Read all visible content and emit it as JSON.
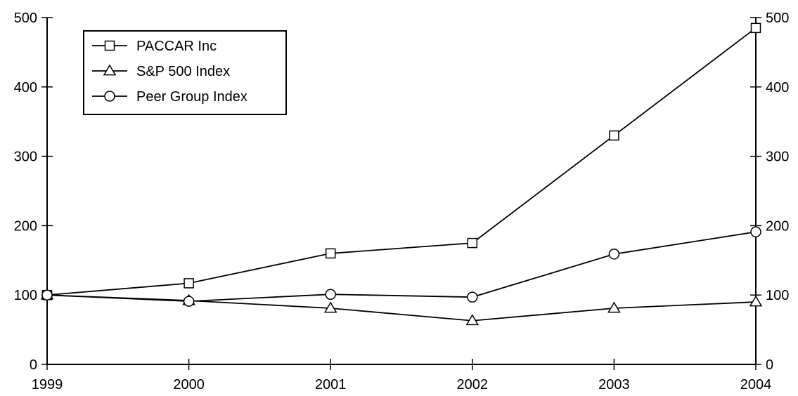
{
  "chart_data": {
    "type": "line",
    "title": "",
    "xlabel": "",
    "ylabel": "",
    "x": [
      "1999",
      "2000",
      "2001",
      "2002",
      "2003",
      "2004"
    ],
    "ylim": [
      0,
      500
    ],
    "yticks": [
      "0",
      "100",
      "200",
      "300",
      "400",
      "500"
    ],
    "y_axis_right": true,
    "grid": false,
    "legend_position": "top-left",
    "series": [
      {
        "name": "PACCAR Inc",
        "marker": "square",
        "values": [
          100,
          117,
          160,
          175,
          330,
          485
        ]
      },
      {
        "name": "S&P 500 Index",
        "marker": "triangle",
        "values": [
          100,
          92,
          81,
          63,
          81,
          90
        ]
      },
      {
        "name": "Peer Group Index",
        "marker": "circle",
        "values": [
          100,
          91,
          101,
          97,
          159,
          191
        ]
      }
    ]
  }
}
